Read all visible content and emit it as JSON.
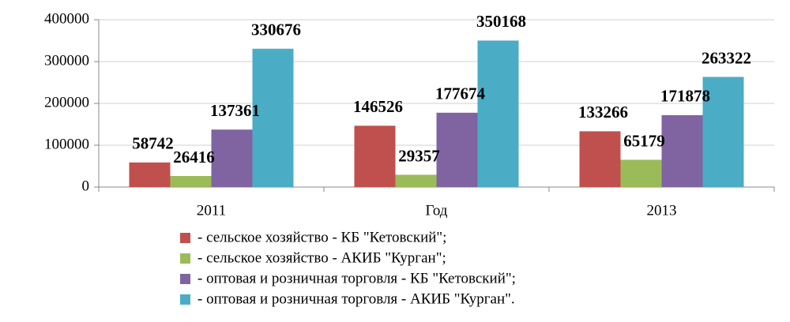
{
  "chart_data": {
    "type": "bar",
    "categories": [
      "2011",
      "Год",
      "2013"
    ],
    "series": [
      {
        "name": "- сельское хозяйство - КБ \"Кетовский\";",
        "color": "#c0504d",
        "values": [
          58742,
          146526,
          133266
        ]
      },
      {
        "name": "- сельское хозяйство - АКИБ \"Курган\";",
        "color": "#9bbb59",
        "values": [
          26416,
          29357,
          65179
        ]
      },
      {
        "name": "- оптовая и розничная торговля - КБ \"Кетовский\";",
        "color": "#8064a2",
        "values": [
          137361,
          177674,
          171878
        ]
      },
      {
        "name": "- оптовая и розничная торговля - АКИБ \"Курган\".",
        "color": "#4bacc6",
        "values": [
          330676,
          350168,
          263322
        ]
      }
    ],
    "ylim": [
      0,
      400000
    ],
    "yticks": [
      0,
      100000,
      200000,
      300000,
      400000
    ],
    "grid": true,
    "legend": "bottom"
  }
}
